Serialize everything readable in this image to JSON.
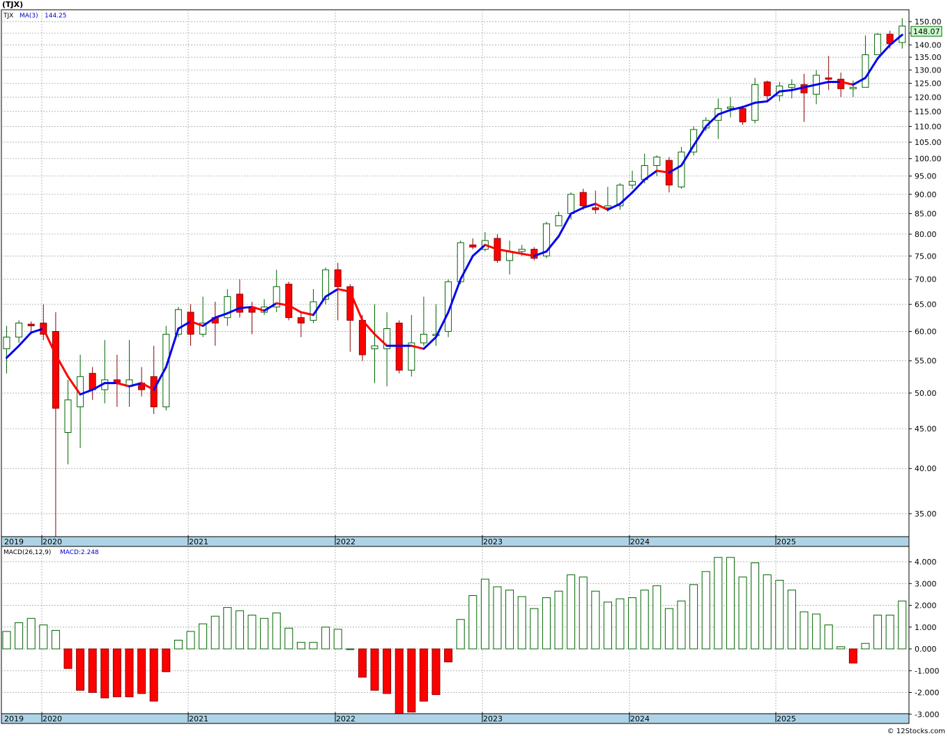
{
  "chart_title": "(TJX)",
  "price_panel": {
    "symbol_label": "TJX",
    "ma_label": "MA(3)",
    "ma_value": "144.25",
    "last_price": "148.07",
    "yticks": [
      35,
      40,
      45,
      50,
      55,
      60,
      65,
      70,
      75,
      80,
      85,
      90,
      95,
      100,
      105,
      110,
      115,
      120,
      125,
      130,
      135,
      140,
      145,
      150
    ],
    "ytick_labels": [
      "35.00",
      "40.00",
      "45.00",
      "50.00",
      "55.00",
      "60.00",
      "65.00",
      "70.00",
      "75.00",
      "80.00",
      "85.00",
      "90.00",
      "95.00",
      "100.00",
      "105.00",
      "110.00",
      "115.00",
      "120.00",
      "125.00",
      "130.00",
      "135.00",
      "140.00",
      "145.00",
      "150.00"
    ]
  },
  "macd_panel": {
    "label": "MACD(26,12,9)",
    "value_label": "MACD:2.248",
    "yticks": [
      -3,
      -2,
      -1,
      0,
      1,
      2,
      3,
      4
    ],
    "ytick_labels": [
      "-3.000",
      "-2.000",
      "-1.000",
      "0.000",
      "1.000",
      "2.000",
      "3.000",
      "4.000"
    ]
  },
  "year_labels": [
    "2019",
    "2020",
    "2021",
    "2022",
    "2023",
    "2024",
    "2025"
  ],
  "footer": "© 12Stocks.com",
  "colors": {
    "up_candle": "#006400",
    "down_candle": "#ff0000",
    "ma_up": "#0000ee",
    "ma_down": "#ff0000",
    "axis_band": "#aed3e6",
    "price_box": "#ccffcc"
  },
  "chart_data": {
    "type": "candlestick",
    "title": "(TJX)",
    "interval": "monthly",
    "y_scale": "log",
    "ylim": [
      32,
      153
    ],
    "candles": [
      {
        "d": "2019-11",
        "o": 57,
        "h": 61,
        "l": 53,
        "c": 59
      },
      {
        "d": "2019-12",
        "o": 59,
        "h": 62,
        "l": 58,
        "c": 61.5
      },
      {
        "d": "2020-01",
        "o": 61.3,
        "h": 61.8,
        "l": 59.5,
        "c": 61
      },
      {
        "d": "2020-02",
        "o": 61.5,
        "h": 65,
        "l": 58.5,
        "c": 59.5
      },
      {
        "d": "2020-03",
        "o": 60,
        "h": 63.5,
        "l": 32,
        "c": 47.8
      },
      {
        "d": "2020-04",
        "o": 44.5,
        "h": 52,
        "l": 40.5,
        "c": 49
      },
      {
        "d": "2020-05",
        "o": 48,
        "h": 56,
        "l": 42.5,
        "c": 52.5
      },
      {
        "d": "2020-06",
        "o": 53,
        "h": 54,
        "l": 49,
        "c": 50.5
      },
      {
        "d": "2020-07",
        "o": 50.5,
        "h": 58.5,
        "l": 48.5,
        "c": 52
      },
      {
        "d": "2020-08",
        "o": 52,
        "h": 56,
        "l": 48,
        "c": 51.5
      },
      {
        "d": "2020-09",
        "o": 51,
        "h": 58.5,
        "l": 48,
        "c": 52
      },
      {
        "d": "2020-10",
        "o": 51.5,
        "h": 54,
        "l": 49.5,
        "c": 50.5
      },
      {
        "d": "2020-11",
        "o": 52.5,
        "h": 57.5,
        "l": 47,
        "c": 48
      },
      {
        "d": "2020-12",
        "o": 48,
        "h": 61,
        "l": 47.5,
        "c": 59.5
      },
      {
        "d": "2021-01",
        "o": 59.5,
        "h": 64.5,
        "l": 59,
        "c": 64
      },
      {
        "d": "2021-02",
        "o": 63.5,
        "h": 65,
        "l": 57.5,
        "c": 59.5
      },
      {
        "d": "2021-03",
        "o": 59.5,
        "h": 66.5,
        "l": 59,
        "c": 61.5
      },
      {
        "d": "2021-04",
        "o": 62.5,
        "h": 65.5,
        "l": 57.5,
        "c": 61.5
      },
      {
        "d": "2021-05",
        "o": 62.5,
        "h": 68,
        "l": 61,
        "c": 66.5
      },
      {
        "d": "2021-06",
        "o": 67,
        "h": 70,
        "l": 62.5,
        "c": 63.5
      },
      {
        "d": "2021-07",
        "o": 64.5,
        "h": 65.5,
        "l": 59.5,
        "c": 63.5
      },
      {
        "d": "2021-08",
        "o": 63.5,
        "h": 66,
        "l": 63,
        "c": 64.5
      },
      {
        "d": "2021-09",
        "o": 64.5,
        "h": 72,
        "l": 63.5,
        "c": 68.5
      },
      {
        "d": "2021-10",
        "o": 69,
        "h": 69.5,
        "l": 62,
        "c": 62.5
      },
      {
        "d": "2021-11",
        "o": 62.5,
        "h": 63.5,
        "l": 59,
        "c": 61.5
      },
      {
        "d": "2021-12",
        "o": 62,
        "h": 68,
        "l": 61.5,
        "c": 65.5
      },
      {
        "d": "2022-01",
        "o": 66,
        "h": 72.5,
        "l": 65,
        "c": 72
      },
      {
        "d": "2022-02",
        "o": 72,
        "h": 73.5,
        "l": 62,
        "c": 68.5
      },
      {
        "d": "2022-03",
        "o": 68.5,
        "h": 69,
        "l": 56.5,
        "c": 62
      },
      {
        "d": "2022-04",
        "o": 62,
        "h": 63,
        "l": 55,
        "c": 56
      },
      {
        "d": "2022-05",
        "o": 57,
        "h": 65,
        "l": 51.5,
        "c": 57.5
      },
      {
        "d": "2022-06",
        "o": 57,
        "h": 63.5,
        "l": 51,
        "c": 60.5
      },
      {
        "d": "2022-07",
        "o": 61.5,
        "h": 62,
        "l": 53,
        "c": 53.5
      },
      {
        "d": "2022-08",
        "o": 53.5,
        "h": 63,
        "l": 52.5,
        "c": 58
      },
      {
        "d": "2022-09",
        "o": 58,
        "h": 66.5,
        "l": 57.5,
        "c": 59.5
      },
      {
        "d": "2022-10",
        "o": 59.5,
        "h": 65,
        "l": 57.5,
        "c": 59.5
      },
      {
        "d": "2022-11",
        "o": 60,
        "h": 70,
        "l": 59,
        "c": 69.5
      },
      {
        "d": "2022-12",
        "o": 69.5,
        "h": 78.5,
        "l": 69,
        "c": 78
      },
      {
        "d": "2023-01",
        "o": 77.5,
        "h": 79,
        "l": 76.5,
        "c": 77
      },
      {
        "d": "2023-02",
        "o": 76.5,
        "h": 80.5,
        "l": 76,
        "c": 78.5
      },
      {
        "d": "2023-03",
        "o": 79,
        "h": 80,
        "l": 73.5,
        "c": 74
      },
      {
        "d": "2023-04",
        "o": 74,
        "h": 78.5,
        "l": 71,
        "c": 76
      },
      {
        "d": "2023-05",
        "o": 76,
        "h": 77.5,
        "l": 75,
        "c": 76.5
      },
      {
        "d": "2023-06",
        "o": 76.5,
        "h": 77,
        "l": 74,
        "c": 74.5
      },
      {
        "d": "2023-07",
        "o": 75,
        "h": 83,
        "l": 74.5,
        "c": 82.5
      },
      {
        "d": "2023-08",
        "o": 82,
        "h": 85.5,
        "l": 82,
        "c": 84.5
      },
      {
        "d": "2023-09",
        "o": 85,
        "h": 90.5,
        "l": 83.5,
        "c": 90
      },
      {
        "d": "2023-10",
        "o": 90.5,
        "h": 91.5,
        "l": 86,
        "c": 87
      },
      {
        "d": "2023-11",
        "o": 86.5,
        "h": 91,
        "l": 85,
        "c": 86
      },
      {
        "d": "2023-12",
        "o": 86.5,
        "h": 92,
        "l": 85.5,
        "c": 87
      },
      {
        "d": "2024-01",
        "o": 87,
        "h": 93,
        "l": 86,
        "c": 92.5
      },
      {
        "d": "2024-02",
        "o": 92.5,
        "h": 96.5,
        "l": 91.5,
        "c": 93.5
      },
      {
        "d": "2024-03",
        "o": 94,
        "h": 101.5,
        "l": 93,
        "c": 98
      },
      {
        "d": "2024-04",
        "o": 98,
        "h": 101,
        "l": 95,
        "c": 100.5
      },
      {
        "d": "2024-05",
        "o": 99.5,
        "h": 100.5,
        "l": 90.5,
        "c": 92.5
      },
      {
        "d": "2024-06",
        "o": 92,
        "h": 103.5,
        "l": 91.5,
        "c": 102
      },
      {
        "d": "2024-07",
        "o": 102,
        "h": 110,
        "l": 101,
        "c": 109
      },
      {
        "d": "2024-08",
        "o": 109.5,
        "h": 113,
        "l": 108.5,
        "c": 112
      },
      {
        "d": "2024-09",
        "o": 112,
        "h": 119.5,
        "l": 106,
        "c": 116
      },
      {
        "d": "2024-10",
        "o": 116.5,
        "h": 120,
        "l": 113,
        "c": 116.5
      },
      {
        "d": "2024-11",
        "o": 116,
        "h": 117,
        "l": 110.5,
        "c": 111.5
      },
      {
        "d": "2024-12",
        "o": 112,
        "h": 127,
        "l": 111,
        "c": 124.5
      },
      {
        "d": "2025-01",
        "o": 125.5,
        "h": 126,
        "l": 119,
        "c": 120.5
      },
      {
        "d": "2025-02",
        "o": 120.5,
        "h": 125.5,
        "l": 118.5,
        "c": 124
      },
      {
        "d": "2025-03",
        "o": 123.5,
        "h": 126.5,
        "l": 119.5,
        "c": 124.5
      },
      {
        "d": "2025-04",
        "o": 124.5,
        "h": 128.5,
        "l": 111.5,
        "c": 121.5
      },
      {
        "d": "2025-05",
        "o": 121,
        "h": 130,
        "l": 117.5,
        "c": 128
      },
      {
        "d": "2025-06",
        "o": 127,
        "h": 135.5,
        "l": 122.5,
        "c": 126.5
      },
      {
        "d": "2025-07",
        "o": 126.5,
        "h": 129,
        "l": 120,
        "c": 123
      },
      {
        "d": "2025-08",
        "o": 123,
        "h": 126,
        "l": 120,
        "c": 123.5
      },
      {
        "d": "2025-09",
        "o": 123.5,
        "h": 144,
        "l": 123.5,
        "c": 136
      },
      {
        "d": "2025-10",
        "o": 136,
        "h": 145,
        "l": 136,
        "c": 144.5
      },
      {
        "d": "2025-11",
        "o": 144.5,
        "h": 146,
        "l": 138.5,
        "c": 140.5
      },
      {
        "d": "2025-12",
        "o": 141,
        "h": 151.5,
        "l": 138.5,
        "c": 148.07
      }
    ],
    "ma3": [
      55.5,
      57.5,
      59.8,
      60.5,
      56,
      52.5,
      49.8,
      50.5,
      51.5,
      51.5,
      51,
      51.5,
      50.5,
      54,
      60.5,
      61.8,
      61,
      62.5,
      63.3,
      64.3,
      64.5,
      63.8,
      65.2,
      64.8,
      63.5,
      63,
      66.5,
      68,
      67.5,
      62,
      59.5,
      57.5,
      57.5,
      57.5,
      57,
      59,
      63.5,
      70,
      75,
      77.5,
      76.5,
      76,
      75.5,
      75,
      76,
      79.5,
      85,
      86.5,
      87.5,
      86,
      87.5,
      90.5,
      94,
      96.5,
      96,
      98,
      104,
      110,
      114,
      115.5,
      116.5,
      118,
      118.5,
      122,
      122.5,
      123.5,
      124.5,
      125.5,
      125.5,
      124.5,
      127,
      134.5,
      140,
      144.25
    ],
    "macd": [
      0.8,
      1.2,
      1.4,
      1.1,
      0.85,
      -0.9,
      -1.9,
      -2.0,
      -2.25,
      -2.2,
      -2.2,
      -2.05,
      -2.4,
      -1.05,
      0.4,
      0.8,
      1.15,
      1.5,
      1.9,
      1.75,
      1.55,
      1.4,
      1.65,
      0.95,
      0.3,
      0.3,
      1.0,
      0.9,
      0.0,
      -1.3,
      -1.9,
      -2.05,
      -3.0,
      -2.9,
      -2.4,
      -2.1,
      -0.6,
      1.35,
      2.45,
      3.2,
      2.85,
      2.7,
      2.4,
      1.85,
      2.35,
      2.65,
      3.4,
      3.3,
      2.65,
      2.15,
      2.3,
      2.35,
      2.7,
      2.9,
      1.85,
      2.2,
      2.95,
      3.55,
      4.2,
      4.2,
      3.3,
      3.95,
      3.4,
      3.15,
      2.7,
      1.7,
      1.6,
      1.1,
      0.1,
      -0.65,
      0.25,
      1.55,
      1.55,
      2.2
    ]
  }
}
